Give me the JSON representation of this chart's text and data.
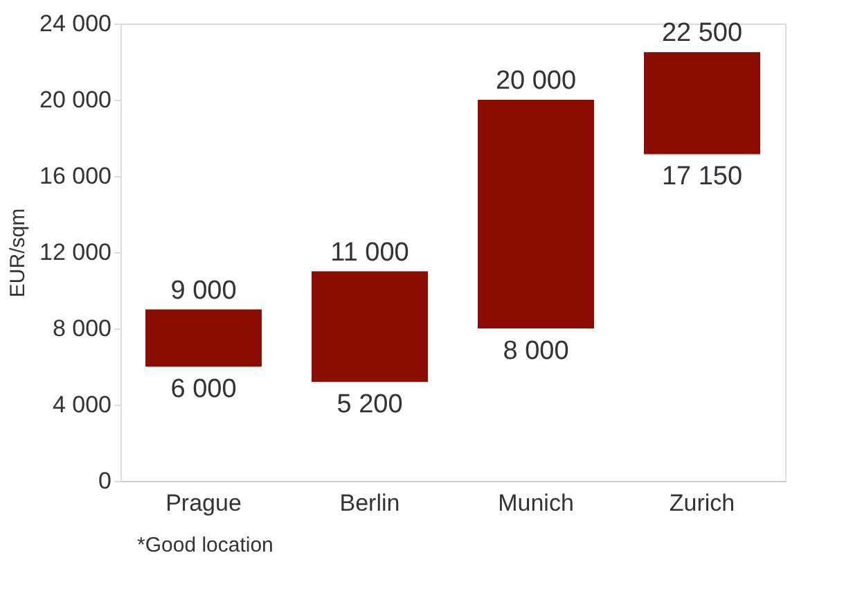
{
  "chart_data": {
    "type": "bar",
    "ylabel": "EUR/sqm",
    "categories": [
      "Prague",
      "Berlin",
      "Munich",
      "Zurich"
    ],
    "base": [
      6000,
      5200,
      8000,
      17150
    ],
    "values": [
      3000,
      5800,
      12000,
      5350
    ],
    "color": "#8b0d02",
    "ylim": [
      0,
      24000
    ],
    "yticks": [
      0,
      {
        "value": 4000,
        "label": "4 000"
      },
      {
        "value": 8000,
        "label": "8 000"
      },
      {
        "value": 12000,
        "label": "12 000"
      },
      {
        "value": 16000,
        "label": "16 000"
      },
      {
        "value": 20000,
        "label": "20 000"
      },
      {
        "value": 24000,
        "label": "24 000"
      }
    ],
    "grid": false,
    "annotations": [
      {
        "text": "9 000",
        "x": "Prague",
        "y": 9000
      },
      {
        "text": "6 000",
        "x": "Prague",
        "y": 6000
      },
      {
        "text": "11 000",
        "x": "Berlin",
        "y": 11000
      },
      {
        "text": "5 200",
        "x": "Berlin",
        "y": 5200
      },
      {
        "text": "20 000",
        "x": "Munich",
        "y": 20000
      },
      {
        "text": "8 000",
        "x": "Munich",
        "y": 8000
      },
      {
        "text": "22 500",
        "x": "Zurich",
        "y": 22500
      },
      {
        "text": "17 150",
        "x": "Zurich",
        "y": 17150
      },
      "*Good location"
    ]
  }
}
